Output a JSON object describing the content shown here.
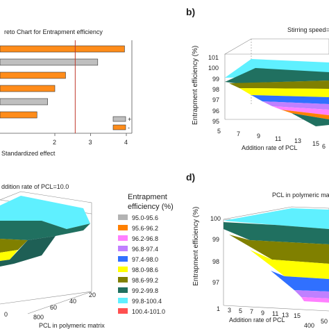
{
  "chart_data": [
    {
      "panel": "a",
      "type": "bar",
      "title": "reto Chart for Entrapment efficiency",
      "xlabel": "Standardized effect",
      "x_ticks": [
        "2",
        "3",
        "4"
      ],
      "xlim": [
        0,
        4
      ],
      "bars": [
        {
          "value": 3.95,
          "sign": "-"
        },
        {
          "value": 3.2,
          "sign": "+"
        },
        {
          "value": 2.3,
          "sign": "-"
        },
        {
          "value": 2.0,
          "sign": "-"
        },
        {
          "value": 1.8,
          "sign": "+"
        },
        {
          "value": 1.5,
          "sign": "-"
        }
      ],
      "reference_line": 2.57,
      "legend": {
        "items": [
          {
            "label": "+",
            "color": "#bfbfbf"
          },
          {
            "label": "-",
            "color": "#ff8c1a"
          }
        ]
      }
    },
    {
      "panel": "b",
      "type": "surface3d",
      "annotation": "Stirring speed=",
      "zlabel": "Entrapment efficiency (%)",
      "z_ticks": [
        "101",
        "100",
        "99",
        "98",
        "97",
        "96",
        "95"
      ],
      "xlabel": "Addition rate of PCL",
      "x_ticks": [
        "5",
        "7",
        "9",
        "11",
        "13",
        "15"
      ],
      "y_ticks": [
        "6"
      ]
    },
    {
      "panel": "c",
      "type": "surface3d",
      "annotation": "ddition rate of PCL=10.0",
      "xlabel": "PCL in polymeric matrix",
      "x_ticks": [
        "0",
        "800",
        "60",
        "40",
        "20"
      ],
      "legend_title": "Entrapment efficiency (%)",
      "legend": [
        {
          "label": "95.0-95.6",
          "color": "#b3b3b3"
        },
        {
          "label": "95.6-96.2",
          "color": "#ff8000"
        },
        {
          "label": "96.2-96.8",
          "color": "#ff80ff"
        },
        {
          "label": "96.8-97.4",
          "color": "#c080ff"
        },
        {
          "label": "97.4-98.0",
          "color": "#3070ff"
        },
        {
          "label": "98.0-98.6",
          "color": "#ffff00"
        },
        {
          "label": "98.6-99.2",
          "color": "#808000"
        },
        {
          "label": "99.2-99.8",
          "color": "#207060"
        },
        {
          "label": "99.8-100.4",
          "color": "#5ff0ff"
        },
        {
          "label": "100.4-101.0",
          "color": "#ff5050"
        }
      ]
    },
    {
      "panel": "d",
      "type": "surface3d",
      "annotation": "PCL in polymeric matri",
      "zlabel": "Entrapment efficiency (%)",
      "z_ticks": [
        "100",
        "99",
        "98",
        "97"
      ],
      "xlabel": "Addition rate of PCL",
      "x_ticks": [
        "1",
        "3",
        "5",
        "7",
        "9",
        "11",
        "13",
        "15",
        "400"
      ],
      "y_ticks": [
        "50"
      ]
    }
  ],
  "panel_labels": {
    "b": "b)",
    "d": "d)"
  }
}
